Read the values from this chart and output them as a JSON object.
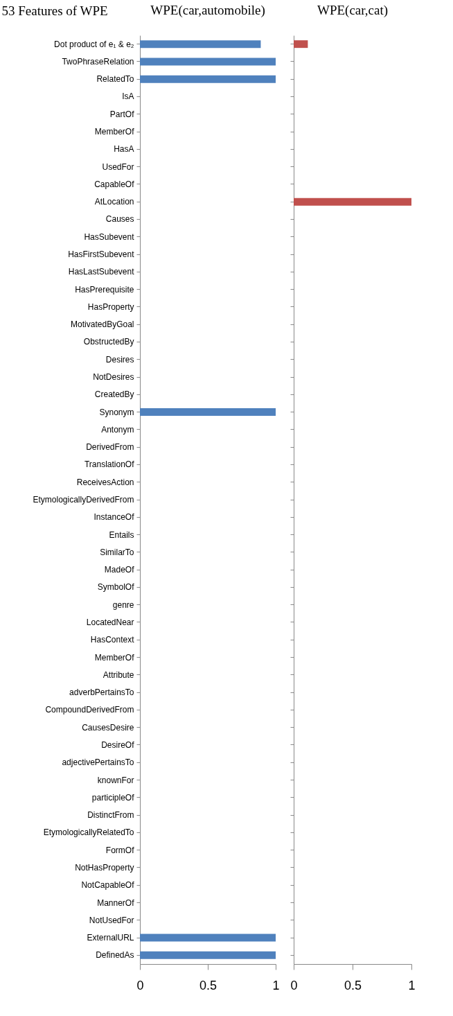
{
  "chart_data": [
    {
      "type": "bar",
      "orientation": "horizontal",
      "title": "WPE(car,automobile)",
      "ylabel": "53 Features of WPE",
      "categories": [
        "Dot product of e₁ & e₂",
        "TwoPhraseRelation",
        "RelatedTo",
        "IsA",
        "PartOf",
        "MemberOf",
        "HasA",
        "UsedFor",
        "CapableOf",
        "AtLocation",
        "Causes",
        "HasSubevent",
        "HasFirstSubevent",
        "HasLastSubevent",
        "HasPrerequisite",
        "HasProperty",
        "MotivatedByGoal",
        "ObstructedBy",
        "Desires",
        "NotDesires",
        "CreatedBy",
        "Synonym",
        "Antonym",
        "DerivedFrom",
        "TranslationOf",
        "ReceivesAction",
        "EtymologicallyDerivedFrom",
        "InstanceOf",
        "Entails",
        "SimilarTo",
        "MadeOf",
        "SymbolOf",
        "genre",
        "LocatedNear",
        "HasContext",
        "MemberOf",
        "Attribute",
        "adverbPertainsTo",
        "CompoundDerivedFrom",
        "CausesDesire",
        "DesireOf",
        "adjectivePertainsTo",
        "knownFor",
        "participleOf",
        "DistinctFrom",
        "EtymologicallyRelatedTo",
        "FormOf",
        "NotHasProperty",
        "NotCapableOf",
        "MannerOf",
        "NotUsedFor",
        "ExternalURL",
        "DefinedAs"
      ],
      "series": [
        {
          "color": "#4f81bd",
          "values": [
            0.89,
            1,
            1,
            0,
            0,
            0,
            0,
            0,
            0,
            0,
            0,
            0,
            0,
            0,
            0,
            0,
            0,
            0,
            0,
            0,
            0,
            1,
            0,
            0,
            0,
            0,
            0,
            0,
            0,
            0,
            0,
            0,
            0,
            0,
            0,
            0,
            0,
            0,
            0,
            0,
            0,
            0,
            0,
            0,
            0,
            0,
            0,
            0,
            0,
            0,
            0,
            1,
            1
          ]
        }
      ],
      "xlim": [
        0,
        1
      ],
      "xticks": [
        0,
        0.5,
        1
      ],
      "grid": false,
      "legend": false
    },
    {
      "type": "bar",
      "orientation": "horizontal",
      "title": "WPE(car,cat)",
      "tick_labels": "x",
      "series": [
        {
          "color": "#c0504d",
          "values": [
            0.12,
            0,
            0,
            0,
            0,
            0,
            0,
            0,
            0,
            1,
            0,
            0,
            0,
            0,
            0,
            0,
            0,
            0,
            0,
            0,
            0,
            0,
            0,
            0,
            0,
            0,
            0,
            0,
            0,
            0,
            0,
            0,
            0,
            0,
            0,
            0,
            0,
            0,
            0,
            0,
            0,
            0,
            0,
            0,
            0,
            0,
            0,
            0,
            0,
            0,
            0,
            0,
            0
          ]
        }
      ],
      "xlim": [
        0,
        1
      ],
      "xticks": [
        0,
        0.5,
        1
      ],
      "grid": false,
      "legend": false
    }
  ]
}
